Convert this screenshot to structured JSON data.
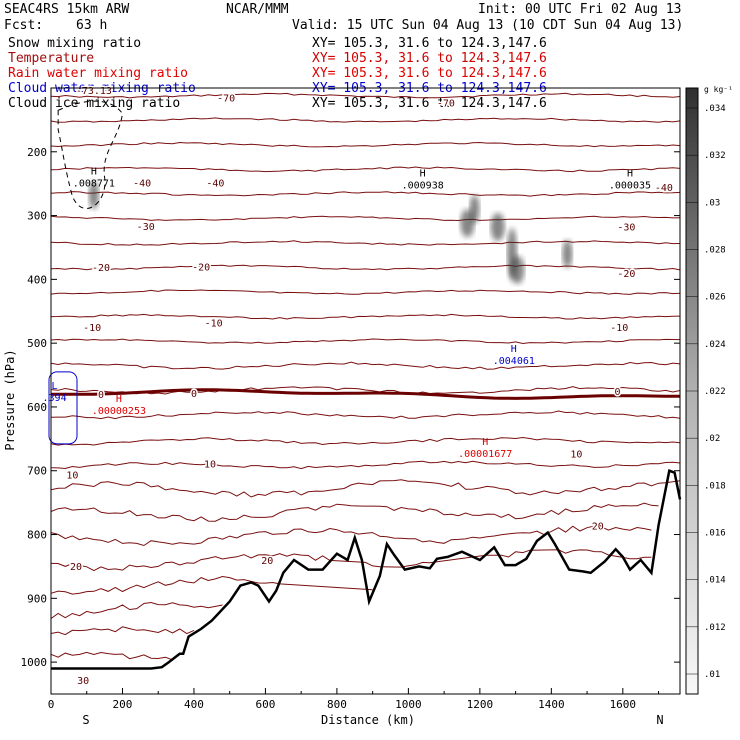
{
  "header": {
    "model": "SEAC4RS 15km ARW",
    "org": "NCAR/MMM",
    "init": "Init: 00 UTC Fri 02 Aug 13",
    "fcst_label": "Fcst:",
    "fcst_value": "63 h",
    "valid": "Valid: 15 UTC Sun 04 Aug 13 (10 CDT Sun 04 Aug 13)"
  },
  "fields": [
    {
      "name": "Snow mixing ratio",
      "xy": "XY= 105.3, 31.6 to 124.3,147.6",
      "color": "#000000"
    },
    {
      "name": "Temperature",
      "xy": "XY= 105.3, 31.6 to 124.3,147.6",
      "color": "#a01010"
    },
    {
      "name": "Rain water mixing ratio",
      "xy": "XY= 105.3, 31.6 to 124.3,147.6",
      "color": "#e00000"
    },
    {
      "name": "Cloud water mixing ratio",
      "xy": "XY= 105.3, 31.6 to 124.3,147.6",
      "color": "#0000cc"
    },
    {
      "name": "Cloud ice mixing ratio",
      "xy": "XY= 105.3, 31.6 to 124.3,147.6",
      "color": "#000000"
    }
  ],
  "chart_data": {
    "type": "cross-section",
    "xlabel": "Distance (km)",
    "ylabel": "Pressure (hPa)",
    "xlim": [
      0,
      1760
    ],
    "ylim": [
      1050,
      100
    ],
    "x_ticks": [
      0,
      200,
      400,
      600,
      800,
      1000,
      1200,
      1400,
      1600
    ],
    "y_ticks": [
      200,
      300,
      400,
      500,
      600,
      700,
      800,
      900,
      1000
    ],
    "endpoint_left": "S",
    "endpoint_right": "N",
    "colorbar": {
      "unit": "g kg⁻¹",
      "ticks": [
        ".01",
        ".012",
        ".014",
        ".016",
        ".018",
        ".02",
        ".022",
        ".024",
        ".026",
        ".028",
        ".03",
        ".032",
        ".034"
      ]
    },
    "temperature_contour_labels": [
      {
        "label": "-70",
        "x": 490,
        "p": 115
      },
      {
        "label": "-70",
        "x": 1105,
        "p": 123
      },
      {
        "label": "-73.13",
        "x": 120,
        "p": 103
      },
      {
        "label": "-40",
        "x": 255,
        "p": 248
      },
      {
        "label": "-40",
        "x": 460,
        "p": 248
      },
      {
        "label": "-40",
        "x": 1715,
        "p": 255
      },
      {
        "label": "-30",
        "x": 265,
        "p": 316
      },
      {
        "label": "-30",
        "x": 1610,
        "p": 317
      },
      {
        "label": "-20",
        "x": 140,
        "p": 381
      },
      {
        "label": "-20",
        "x": 420,
        "p": 380
      },
      {
        "label": "-20",
        "x": 1610,
        "p": 390
      },
      {
        "label": "-10",
        "x": 115,
        "p": 475
      },
      {
        "label": "-10",
        "x": 455,
        "p": 468
      },
      {
        "label": "-10",
        "x": 1590,
        "p": 475
      },
      {
        "label": "0",
        "x": 140,
        "p": 580
      },
      {
        "label": "0",
        "x": 400,
        "p": 578
      },
      {
        "label": "0",
        "x": 1585,
        "p": 575
      },
      {
        "label": "10",
        "x": 60,
        "p": 706
      },
      {
        "label": "10",
        "x": 445,
        "p": 689
      },
      {
        "label": "10",
        "x": 1470,
        "p": 673
      },
      {
        "label": "20",
        "x": 70,
        "p": 849
      },
      {
        "label": "20",
        "x": 605,
        "p": 840
      },
      {
        "label": "20",
        "x": 1530,
        "p": 786
      },
      {
        "label": "30",
        "x": 90,
        "p": 1028
      }
    ],
    "extrema": [
      {
        "type": "H",
        "value": ".008771",
        "x": 120,
        "p": 245,
        "color": "#000000"
      },
      {
        "type": "H",
        "value": ".000938",
        "x": 1040,
        "p": 248,
        "color": "#000000"
      },
      {
        "type": "H",
        "value": ".000035",
        "x": 1620,
        "p": 248,
        "color": "#000000"
      },
      {
        "type": "H",
        "value": ".004061",
        "x": 1295,
        "p": 523,
        "color": "#0000cc"
      },
      {
        "type": "H",
        "value": ".00000253",
        "x": 190,
        "p": 602,
        "color": "#e00000"
      },
      {
        "type": "H",
        "value": ".00001677",
        "x": 1215,
        "p": 669,
        "color": "#e00000"
      },
      {
        "type": "L",
        "value": ".394",
        "x": 10,
        "p": 581,
        "color": "#0000cc"
      }
    ],
    "terrain_surface": {
      "x": [
        0,
        100,
        200,
        280,
        310,
        330,
        360,
        370,
        385,
        420,
        450,
        500,
        530,
        560,
        580,
        610,
        630,
        650,
        680,
        720,
        760,
        800,
        830,
        850,
        870,
        890,
        920,
        940,
        960,
        990,
        1030,
        1060,
        1080,
        1110,
        1150,
        1200,
        1240,
        1270,
        1300,
        1330,
        1360,
        1390,
        1410,
        1450,
        1490,
        1510,
        1550,
        1580,
        1600,
        1620,
        1650,
        1680,
        1700,
        1730,
        1745,
        1760
      ],
      "p": [
        1010,
        1010,
        1010,
        1010,
        1008,
        1000,
        987,
        987,
        960,
        948,
        935,
        905,
        880,
        875,
        880,
        905,
        888,
        860,
        840,
        855,
        855,
        830,
        840,
        805,
        840,
        905,
        865,
        815,
        832,
        855,
        850,
        853,
        838,
        835,
        827,
        840,
        820,
        848,
        848,
        838,
        810,
        797,
        815,
        855,
        858,
        860,
        842,
        823,
        835,
        855,
        840,
        860,
        785,
        700,
        703,
        745
      ]
    },
    "cloud_ice_features": [
      {
        "x": 120,
        "p": 268
      },
      {
        "x": 1165,
        "p": 312
      },
      {
        "x": 1185,
        "p": 290
      },
      {
        "x": 1250,
        "p": 318
      },
      {
        "x": 1290,
        "p": 360
      },
      {
        "x": 1305,
        "p": 385
      },
      {
        "x": 1445,
        "p": 360
      }
    ]
  }
}
